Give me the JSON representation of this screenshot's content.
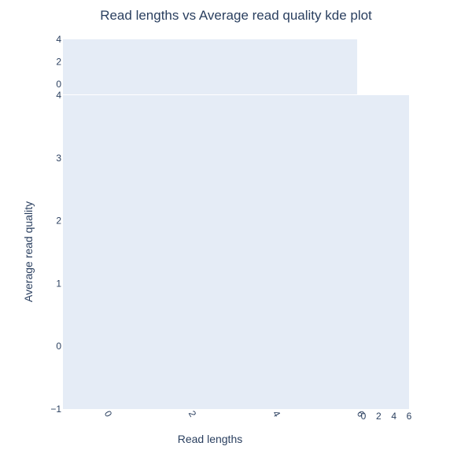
{
  "chart_data": {
    "type": "heatmap",
    "title": "Read lengths vs Average read quality kde plot",
    "xlabel": "Read lengths",
    "ylabel": "Average read quality",
    "xlim": [
      -1,
      6
    ],
    "ylim": [
      -1,
      4
    ],
    "x_ticks": [
      "0",
      "2",
      "4",
      "6"
    ],
    "y_ticks": [
      "−1",
      "0",
      "1",
      "2",
      "3",
      "4"
    ],
    "marginal_top": {
      "ylim": [
        0,
        4
      ],
      "y_ticks": [
        "0",
        "2",
        "4"
      ]
    },
    "marginal_right": {
      "xlim": [
        0,
        6
      ],
      "x_ticks": [
        "0",
        "2",
        "4",
        "6"
      ]
    },
    "grid": false,
    "background_color": "#e5ecf6",
    "text_color": "#2a3f5f"
  }
}
